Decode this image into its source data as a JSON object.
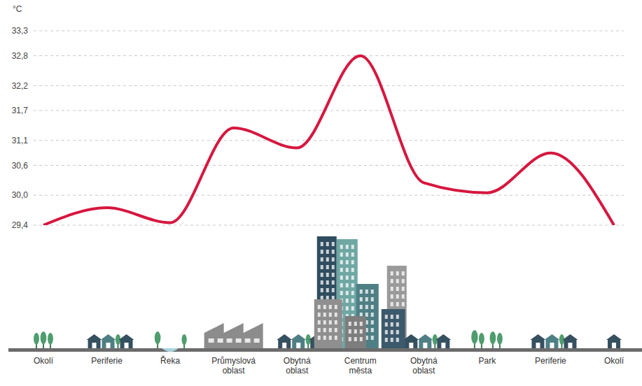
{
  "chart_data": {
    "type": "line",
    "y_label": "°C",
    "categories": [
      "Okolí",
      "Periferie",
      "Řeka",
      "Průmyslová oblast",
      "Obytná oblast",
      "Centrum města",
      "Obytná oblast",
      "Park",
      "Periferie",
      "Okolí"
    ],
    "values": [
      29.4,
      29.75,
      29.45,
      31.35,
      30.95,
      32.8,
      30.25,
      30.05,
      30.85,
      29.4
    ],
    "color": "#d6173f",
    "ylim": [
      29.4,
      33.3
    ],
    "yticks": [
      {
        "value": 29.4,
        "label": "29,4"
      },
      {
        "value": 30.0,
        "label": "30,0"
      },
      {
        "value": 30.6,
        "label": "30,6"
      },
      {
        "value": 31.1,
        "label": "31,1"
      },
      {
        "value": 31.7,
        "label": "31,7"
      },
      {
        "value": 32.2,
        "label": "32,2"
      },
      {
        "value": 32.8,
        "label": "32,8"
      },
      {
        "value": 33.3,
        "label": "33,3"
      }
    ],
    "grid": true
  }
}
